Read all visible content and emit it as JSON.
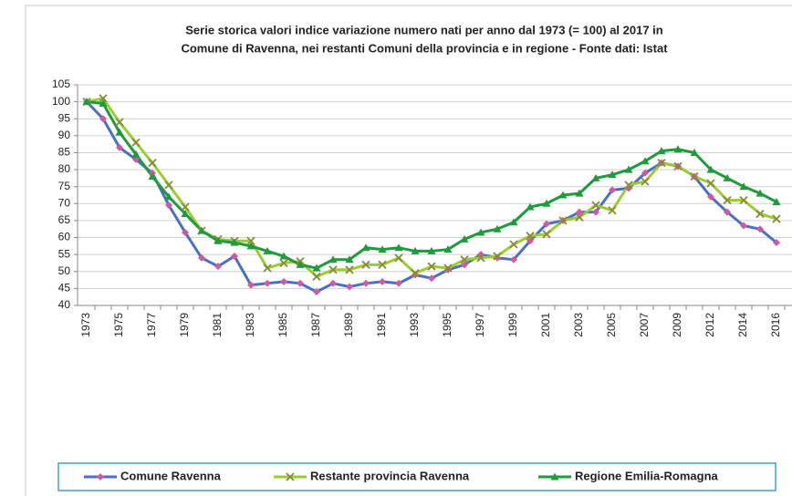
{
  "chart_data": {
    "type": "line",
    "title": [
      "Serie storica valori indice variazione  numero nati per anno dal 1973 (= 100) al 2017 in",
      "Comune di Ravenna, nei restanti Comuni della provincia e in regione - Fonte dati: Istat"
    ],
    "categories": [
      "1973",
      null,
      "1975",
      null,
      "1977",
      null,
      "1979",
      null,
      "1981",
      null,
      "1983",
      null,
      "1985",
      null,
      "1987",
      null,
      "1989",
      null,
      "1991",
      null,
      "1993",
      null,
      "1995",
      null,
      "1997",
      null,
      "1999",
      null,
      "2001",
      null,
      "2003",
      null,
      "2005",
      null,
      "2007",
      null,
      "2009",
      null,
      "2012",
      null,
      "2014",
      null,
      "2016"
    ],
    "series": [
      {
        "name": "Comune Ravenna",
        "color": "#4a6fc8",
        "marker_color": "#d05aa0",
        "values": [
          100,
          95,
          86.5,
          83,
          79,
          69.5,
          61.5,
          54,
          51.5,
          54.5,
          46,
          46.5,
          47,
          46.5,
          44,
          46.5,
          45.5,
          46.5,
          47,
          46.5,
          49,
          48,
          50.5,
          52,
          55,
          54,
          53.5,
          59,
          64,
          65,
          67.5,
          67.5,
          74,
          74.5,
          79,
          82,
          81,
          78,
          72,
          67.5,
          63.5,
          62.5,
          58.5
        ]
      },
      {
        "name": "Restante provincia Ravenna",
        "color": "#9acd32",
        "marker_color": "#8a8a3a",
        "values": [
          100,
          101,
          94,
          88,
          82,
          75.5,
          69,
          62,
          59.5,
          59,
          59,
          51,
          52.5,
          53,
          48.5,
          50.5,
          50.5,
          52,
          52,
          54,
          49.5,
          51.5,
          51,
          53.5,
          54,
          54.5,
          58,
          60.5,
          61,
          65,
          66,
          69.5,
          68,
          75.5,
          76.5,
          82,
          81,
          78,
          76,
          71,
          71,
          67,
          65.5
        ]
      },
      {
        "name": "Regione Emilia-Romagna",
        "color": "#1f9a3c",
        "marker_color": "#1f9a3c",
        "values": [
          100,
          99.5,
          91,
          84.5,
          78,
          72,
          67,
          62,
          59,
          58.5,
          57.5,
          56,
          54.5,
          52,
          51,
          53.5,
          53.5,
          57,
          56.5,
          57,
          56,
          56,
          56.5,
          59.5,
          61.5,
          62.5,
          64.5,
          69,
          70,
          72.5,
          73,
          77.5,
          78.5,
          80,
          82.5,
          85.5,
          86,
          85,
          80,
          77.5,
          75,
          73,
          70.5
        ]
      }
    ],
    "ylim": [
      40,
      105
    ],
    "yticks": [
      40,
      45,
      50,
      55,
      60,
      65,
      70,
      75,
      80,
      85,
      90,
      95,
      100,
      105
    ],
    "grid": true
  }
}
